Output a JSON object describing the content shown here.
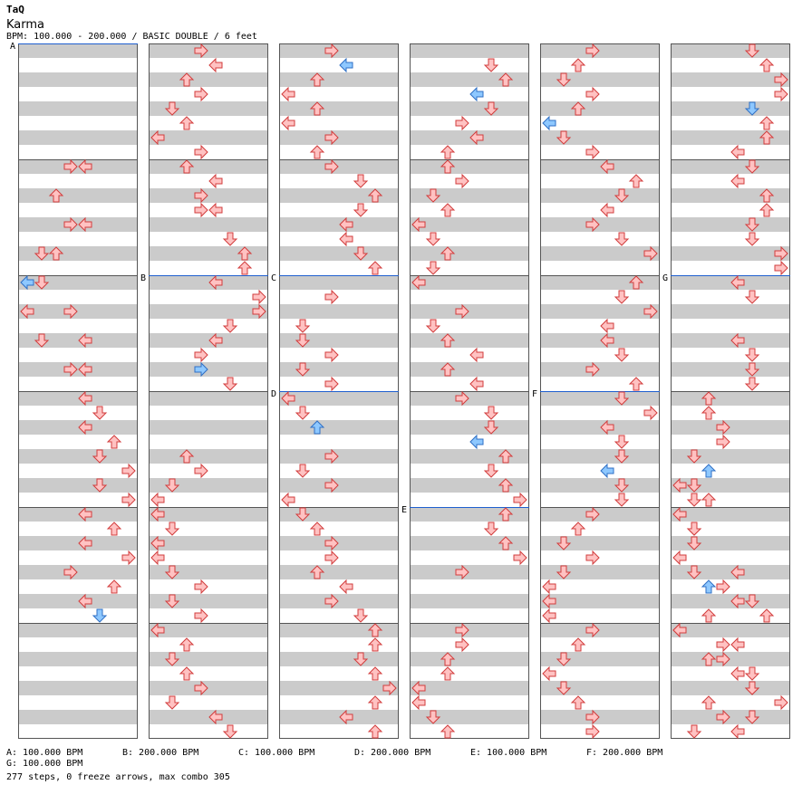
{
  "song": {
    "artist": "TaQ",
    "title": "Karma",
    "info": "BPM: 100.000 - 200.000 / BASIC DOUBLE / 6 feet"
  },
  "sections": [
    {
      "label": "A",
      "beat": 0
    },
    {
      "label": "B",
      "beat": 128
    },
    {
      "label": "C",
      "beat": 224
    },
    {
      "label": "D",
      "beat": 240
    },
    {
      "label": "E",
      "beat": 352
    },
    {
      "label": "F",
      "beat": 432
    },
    {
      "label": "G",
      "beat": 512
    }
  ],
  "bpm_changes": [
    {
      "label": "A",
      "text": "A: 100.000 BPM"
    },
    {
      "label": "B",
      "text": "B: 200.000 BPM"
    },
    {
      "label": "C",
      "text": "C: 100.000 BPM"
    },
    {
      "label": "D",
      "text": "D: 200.000 BPM"
    },
    {
      "label": "E",
      "text": "E: 100.000 BPM"
    },
    {
      "label": "F",
      "text": "F: 200.000 BPM"
    },
    {
      "label": "G",
      "text": "G: 100.000 BPM"
    }
  ],
  "stats": "277 steps, 0 freeze arrows, max combo 305",
  "colors": {
    "red_fill": "#ffc2c2",
    "red_stroke": "#d23c3c",
    "blue_fill": "#8ec8ff",
    "blue_stroke": "#2f6fc4",
    "stripe": "#cbcbcb",
    "bpm_line": "#1f5fcf"
  },
  "chart": {
    "lane_order": [
      "left",
      "down",
      "up",
      "right",
      "left",
      "down",
      "up",
      "right"
    ],
    "beats_per_column": 96,
    "beats_per_measure": 16,
    "notes": [
      [
        0,
        16,
        3
      ],
      [
        0,
        16,
        4
      ],
      [
        0,
        20,
        2
      ],
      [
        0,
        24,
        3
      ],
      [
        0,
        24,
        4
      ],
      [
        0,
        28,
        1
      ],
      [
        0,
        28,
        2
      ],
      [
        0,
        32,
        0
      ],
      [
        0,
        32,
        1
      ],
      [
        0,
        36,
        0
      ],
      [
        0,
        36,
        3
      ],
      [
        0,
        40,
        1
      ],
      [
        0,
        40,
        4
      ],
      [
        0,
        44,
        3
      ],
      [
        0,
        44,
        4
      ],
      [
        0,
        48,
        4
      ],
      [
        0,
        50,
        5
      ],
      [
        0,
        52,
        4
      ],
      [
        0,
        54,
        6
      ],
      [
        0,
        56,
        5
      ],
      [
        0,
        58,
        7
      ],
      [
        0,
        60,
        5
      ],
      [
        0,
        62,
        7
      ],
      [
        0,
        64,
        4
      ],
      [
        0,
        66,
        6
      ],
      [
        0,
        68,
        4
      ],
      [
        0,
        70,
        7
      ],
      [
        0,
        72,
        3
      ],
      [
        0,
        74,
        6
      ],
      [
        0,
        76,
        4
      ],
      [
        0,
        78,
        5
      ],
      [
        1,
        0,
        3
      ],
      [
        1,
        2,
        4
      ],
      [
        1,
        4,
        2
      ],
      [
        1,
        6,
        3
      ],
      [
        1,
        8,
        1
      ],
      [
        1,
        10,
        2
      ],
      [
        1,
        12,
        0
      ],
      [
        1,
        14,
        3
      ],
      [
        1,
        16,
        2
      ],
      [
        1,
        18,
        4
      ],
      [
        1,
        20,
        3
      ],
      [
        1,
        22,
        3
      ],
      [
        1,
        22,
        4
      ],
      [
        1,
        26,
        5
      ],
      [
        1,
        28,
        6
      ],
      [
        1,
        30,
        6
      ],
      [
        1,
        32,
        4
      ],
      [
        1,
        34,
        7
      ],
      [
        1,
        36,
        7
      ],
      [
        1,
        38,
        5
      ],
      [
        1,
        40,
        4
      ],
      [
        1,
        42,
        3
      ],
      [
        1,
        44,
        3
      ],
      [
        1,
        46,
        5
      ],
      [
        1,
        56,
        2
      ],
      [
        1,
        58,
        3
      ],
      [
        1,
        60,
        1
      ],
      [
        1,
        62,
        0
      ],
      [
        1,
        64,
        0
      ],
      [
        1,
        66,
        1
      ],
      [
        1,
        68,
        0
      ],
      [
        1,
        70,
        0
      ],
      [
        1,
        72,
        1
      ],
      [
        1,
        74,
        3
      ],
      [
        1,
        76,
        1
      ],
      [
        1,
        78,
        3
      ],
      [
        1,
        80,
        0
      ],
      [
        1,
        82,
        2
      ],
      [
        1,
        84,
        1
      ],
      [
        1,
        86,
        2
      ],
      [
        1,
        88,
        3
      ],
      [
        1,
        90,
        1
      ],
      [
        1,
        92,
        4
      ],
      [
        1,
        94,
        5
      ],
      [
        2,
        0,
        3
      ],
      [
        2,
        2,
        4
      ],
      [
        2,
        4,
        2
      ],
      [
        2,
        6,
        0
      ],
      [
        2,
        8,
        2
      ],
      [
        2,
        10,
        0
      ],
      [
        2,
        12,
        3
      ],
      [
        2,
        14,
        2
      ],
      [
        2,
        16,
        3
      ],
      [
        2,
        18,
        5
      ],
      [
        2,
        20,
        6
      ],
      [
        2,
        22,
        5
      ],
      [
        2,
        24,
        4
      ],
      [
        2,
        26,
        4
      ],
      [
        2,
        28,
        5
      ],
      [
        2,
        30,
        6
      ],
      [
        2,
        34,
        3
      ],
      [
        2,
        38,
        1
      ],
      [
        2,
        40,
        1
      ],
      [
        2,
        42,
        3
      ],
      [
        2,
        44,
        1
      ],
      [
        2,
        46,
        3
      ],
      [
        2,
        48,
        0
      ],
      [
        2,
        50,
        1
      ],
      [
        2,
        52,
        2
      ],
      [
        2,
        56,
        3
      ],
      [
        2,
        58,
        1
      ],
      [
        2,
        60,
        3
      ],
      [
        2,
        62,
        0
      ],
      [
        2,
        64,
        1
      ],
      [
        2,
        66,
        2
      ],
      [
        2,
        68,
        3
      ],
      [
        2,
        70,
        3
      ],
      [
        2,
        72,
        2
      ],
      [
        2,
        74,
        4
      ],
      [
        2,
        76,
        3
      ],
      [
        2,
        78,
        5
      ],
      [
        2,
        80,
        6
      ],
      [
        2,
        82,
        6
      ],
      [
        2,
        84,
        5
      ],
      [
        2,
        86,
        6
      ],
      [
        2,
        88,
        7
      ],
      [
        2,
        90,
        6
      ],
      [
        2,
        92,
        4
      ],
      [
        2,
        94,
        6
      ],
      [
        3,
        2,
        5
      ],
      [
        3,
        4,
        6
      ],
      [
        3,
        6,
        4
      ],
      [
        3,
        8,
        5
      ],
      [
        3,
        10,
        3
      ],
      [
        3,
        12,
        4
      ],
      [
        3,
        14,
        2
      ],
      [
        3,
        16,
        2
      ],
      [
        3,
        18,
        3
      ],
      [
        3,
        20,
        1
      ],
      [
        3,
        22,
        2
      ],
      [
        3,
        24,
        0
      ],
      [
        3,
        26,
        1
      ],
      [
        3,
        28,
        2
      ],
      [
        3,
        30,
        1
      ],
      [
        3,
        32,
        0
      ],
      [
        3,
        36,
        3
      ],
      [
        3,
        38,
        1
      ],
      [
        3,
        40,
        2
      ],
      [
        3,
        42,
        4
      ],
      [
        3,
        44,
        2
      ],
      [
        3,
        46,
        4
      ],
      [
        3,
        48,
        3
      ],
      [
        3,
        50,
        5
      ],
      [
        3,
        52,
        5
      ],
      [
        3,
        54,
        4
      ],
      [
        3,
        56,
        6
      ],
      [
        3,
        58,
        5
      ],
      [
        3,
        60,
        6
      ],
      [
        3,
        62,
        7
      ],
      [
        3,
        64,
        6
      ],
      [
        3,
        66,
        5
      ],
      [
        3,
        68,
        6
      ],
      [
        3,
        70,
        7
      ],
      [
        3,
        72,
        3
      ],
      [
        3,
        80,
        3
      ],
      [
        3,
        82,
        3
      ],
      [
        3,
        84,
        2
      ],
      [
        3,
        86,
        2
      ],
      [
        3,
        88,
        0
      ],
      [
        3,
        90,
        0
      ],
      [
        3,
        92,
        1
      ],
      [
        3,
        94,
        2
      ],
      [
        4,
        0,
        3
      ],
      [
        4,
        2,
        2
      ],
      [
        4,
        4,
        1
      ],
      [
        4,
        6,
        3
      ],
      [
        4,
        8,
        2
      ],
      [
        4,
        10,
        0
      ],
      [
        4,
        12,
        1
      ],
      [
        4,
        14,
        3
      ],
      [
        4,
        16,
        4
      ],
      [
        4,
        18,
        6
      ],
      [
        4,
        20,
        5
      ],
      [
        4,
        22,
        4
      ],
      [
        4,
        24,
        3
      ],
      [
        4,
        26,
        5
      ],
      [
        4,
        28,
        7
      ],
      [
        4,
        32,
        6
      ],
      [
        4,
        34,
        5
      ],
      [
        4,
        36,
        7
      ],
      [
        4,
        38,
        4
      ],
      [
        4,
        40,
        4
      ],
      [
        4,
        42,
        5
      ],
      [
        4,
        44,
        3
      ],
      [
        4,
        46,
        6
      ],
      [
        4,
        48,
        5
      ],
      [
        4,
        50,
        7
      ],
      [
        4,
        52,
        4
      ],
      [
        4,
        54,
        5
      ],
      [
        4,
        56,
        5
      ],
      [
        4,
        58,
        4
      ],
      [
        4,
        60,
        5
      ],
      [
        4,
        62,
        5
      ],
      [
        4,
        64,
        3
      ],
      [
        4,
        66,
        2
      ],
      [
        4,
        68,
        1
      ],
      [
        4,
        70,
        3
      ],
      [
        4,
        72,
        1
      ],
      [
        4,
        74,
        0
      ],
      [
        4,
        76,
        0
      ],
      [
        4,
        78,
        0
      ],
      [
        4,
        80,
        3
      ],
      [
        4,
        82,
        2
      ],
      [
        4,
        84,
        1
      ],
      [
        4,
        86,
        0
      ],
      [
        4,
        88,
        1
      ],
      [
        4,
        90,
        2
      ],
      [
        4,
        92,
        3
      ],
      [
        4,
        94,
        3
      ],
      [
        5,
        0,
        5
      ],
      [
        5,
        2,
        6
      ],
      [
        5,
        4,
        7
      ],
      [
        5,
        6,
        7
      ],
      [
        5,
        8,
        5
      ],
      [
        5,
        10,
        6
      ],
      [
        5,
        12,
        6
      ],
      [
        5,
        14,
        4
      ],
      [
        5,
        16,
        5
      ],
      [
        5,
        18,
        4
      ],
      [
        5,
        20,
        6
      ],
      [
        5,
        22,
        6
      ],
      [
        5,
        24,
        5
      ],
      [
        5,
        26,
        5
      ],
      [
        5,
        28,
        7
      ],
      [
        5,
        30,
        7
      ],
      [
        5,
        32,
        4
      ],
      [
        5,
        34,
        5
      ],
      [
        5,
        40,
        4
      ],
      [
        5,
        42,
        5
      ],
      [
        5,
        44,
        5
      ],
      [
        5,
        46,
        5
      ],
      [
        5,
        48,
        2
      ],
      [
        5,
        50,
        2
      ],
      [
        5,
        52,
        3
      ],
      [
        5,
        54,
        3
      ],
      [
        5,
        56,
        1
      ],
      [
        5,
        58,
        2
      ],
      [
        5,
        60,
        0
      ],
      [
        5,
        62,
        1
      ],
      [
        5,
        64,
        0
      ],
      [
        5,
        66,
        1
      ],
      [
        5,
        68,
        1
      ],
      [
        5,
        72,
        4
      ],
      [
        5,
        74,
        3
      ],
      [
        5,
        76,
        4
      ],
      [
        5,
        78,
        2
      ],
      [
        5,
        80,
        0
      ],
      [
        5,
        82,
        4
      ],
      [
        5,
        84,
        3
      ],
      [
        5,
        86,
        5
      ],
      [
        5,
        88,
        5
      ],
      [
        5,
        90,
        2
      ],
      [
        5,
        92,
        3
      ],
      [
        5,
        94,
        4
      ],
      [
        5,
        60,
        1
      ],
      [
        5,
        62,
        2
      ],
      [
        5,
        66,
        1
      ],
      [
        5,
        70,
        0
      ],
      [
        5,
        72,
        1
      ],
      [
        5,
        74,
        2
      ],
      [
        5,
        76,
        5
      ],
      [
        5,
        78,
        6
      ],
      [
        5,
        80,
        0
      ],
      [
        5,
        82,
        3
      ],
      [
        5,
        84,
        2
      ],
      [
        5,
        86,
        4
      ],
      [
        5,
        88,
        5
      ],
      [
        5,
        90,
        7
      ],
      [
        5,
        92,
        5
      ],
      [
        5,
        94,
        1
      ]
    ]
  }
}
